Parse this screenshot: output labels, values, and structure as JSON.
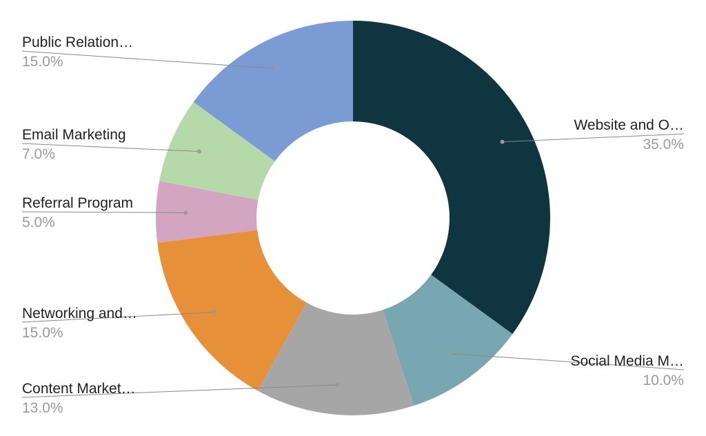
{
  "chart_data": {
    "type": "pie",
    "donut": true,
    "slices": [
      {
        "label": "Website and O…",
        "value": 35.0,
        "percent_label": "35.0%",
        "color": "#0e3540"
      },
      {
        "label": "Social Media M…",
        "value": 10.0,
        "percent_label": "10.0%",
        "color": "#78a7b2"
      },
      {
        "label": "Content Market…",
        "value": 13.0,
        "percent_label": "13.0%",
        "color": "#a6a6a6"
      },
      {
        "label": "Networking and…",
        "value": 15.0,
        "percent_label": "15.0%",
        "color": "#e6913a"
      },
      {
        "label": "Referral Program",
        "value": 5.0,
        "percent_label": "5.0%",
        "color": "#d4a5c0"
      },
      {
        "label": "Email Marketing",
        "value": 7.0,
        "percent_label": "7.0%",
        "color": "#b5d9a8"
      },
      {
        "label": "Public Relation…",
        "value": 15.0,
        "percent_label": "15.0%",
        "color": "#7b9bd4"
      }
    ]
  }
}
